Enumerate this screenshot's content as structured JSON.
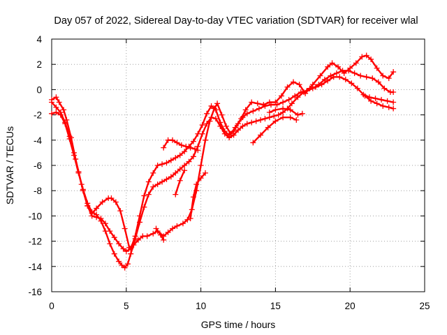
{
  "chart_data": {
    "type": "scatter",
    "title": "Day 057 of 2022, Sidereal Day-to-day VTEC variation (SDTVAR) for receiver wlal",
    "xlabel": "GPS time / hours",
    "ylabel": "SDTVAR / TECUs",
    "xlim": [
      0,
      25
    ],
    "ylim": [
      -16,
      4
    ],
    "x_ticks": [
      "0",
      "5",
      "10",
      "15",
      "20",
      "25"
    ],
    "y_ticks": [
      "4",
      "2",
      "0",
      "-2",
      "-4",
      "-6",
      "-8",
      "-10",
      "-12",
      "-14",
      "-16"
    ],
    "grid": true,
    "marker": "plus",
    "color": "#ff0000",
    "series": [
      {
        "x": [
          0.0,
          0.3,
          0.5,
          0.8,
          1.0,
          1.3,
          1.6,
          2.0,
          2.4,
          2.7,
          3.0,
          3.4,
          3.8,
          4.0,
          4.3,
          4.6,
          4.9,
          5.2,
          5.5,
          5.8,
          6.1,
          6.4,
          6.8,
          7.1,
          7.5,
          7.8,
          8.1,
          8.4,
          8.8,
          9.1,
          9.4,
          9.7,
          10.0,
          10.3,
          10.6,
          10.9,
          11.1,
          11.4,
          11.7,
          12.0,
          12.3,
          12.7,
          13.0,
          13.4,
          13.8,
          14.2,
          14.6,
          15.0,
          15.4,
          15.8,
          16.2,
          16.6,
          17.0,
          17.5,
          18.0,
          18.5,
          18.8,
          19.2,
          19.6,
          20.0,
          20.4,
          20.8,
          21.1,
          21.4,
          21.8,
          22.2,
          22.6,
          22.9
        ],
        "y": [
          -0.8,
          -0.6,
          -1.0,
          -1.6,
          -2.4,
          -3.8,
          -5.5,
          -7.5,
          -9.2,
          -9.8,
          -9.4,
          -8.9,
          -8.6,
          -8.6,
          -8.9,
          -9.6,
          -11.0,
          -12.5,
          -12.3,
          -11.9,
          -11.6,
          -11.6,
          -11.4,
          -11.2,
          -11.6,
          -11.3,
          -11.0,
          -10.8,
          -10.6,
          -10.3,
          -9.5,
          -8.0,
          -6.0,
          -4.0,
          -2.5,
          -1.5,
          -1.1,
          -2.0,
          -2.9,
          -3.5,
          -3.0,
          -2.3,
          -1.6,
          -1.0,
          -1.1,
          -1.2,
          -1.0,
          -1.0,
          -0.5,
          0.2,
          0.6,
          0.4,
          -0.3,
          0.4,
          1.1,
          1.8,
          2.1,
          1.8,
          1.3,
          1.7,
          2.1,
          2.6,
          2.7,
          2.4,
          1.7,
          1.1,
          0.9,
          1.4
        ]
      },
      {
        "x": [
          0.0,
          0.3,
          0.6,
          0.9,
          1.2,
          1.5,
          1.8,
          2.1,
          2.4,
          2.7,
          3.0,
          3.3,
          3.6,
          3.9,
          4.2,
          4.5,
          4.8,
          5.0,
          5.3,
          5.6,
          5.9,
          6.2,
          6.5,
          6.8,
          7.1,
          7.4,
          7.7,
          8.0,
          8.3,
          8.6,
          8.9,
          9.2,
          9.5,
          9.8,
          10.1,
          10.4,
          10.7,
          11.0,
          11.3,
          11.6,
          11.9,
          12.2,
          12.5,
          12.8,
          13.1,
          13.5,
          13.9,
          14.3,
          14.7,
          15.1,
          15.5,
          15.9,
          16.3,
          16.7,
          17.1,
          17.5,
          17.9,
          18.3,
          18.7,
          19.1,
          19.5,
          19.9,
          20.3,
          20.7,
          21.1,
          21.5,
          21.9,
          22.3,
          22.7,
          22.9
        ],
        "y": [
          -1.0,
          -1.4,
          -1.8,
          -2.6,
          -3.7,
          -5.0,
          -6.5,
          -8.0,
          -9.2,
          -10.0,
          -10.1,
          -10.2,
          -10.6,
          -11.2,
          -11.7,
          -12.2,
          -12.6,
          -12.8,
          -12.6,
          -11.6,
          -10.0,
          -8.4,
          -7.3,
          -6.6,
          -6.0,
          -5.9,
          -5.8,
          -5.6,
          -5.4,
          -5.2,
          -4.9,
          -4.5,
          -4.1,
          -3.5,
          -2.8,
          -1.9,
          -1.3,
          -1.6,
          -2.6,
          -3.3,
          -3.6,
          -3.3,
          -2.7,
          -2.2,
          -1.9,
          -1.7,
          -1.5,
          -1.3,
          -1.2,
          -1.2,
          -1.0,
          -0.8,
          -0.5,
          -0.2,
          -0.1,
          0.1,
          0.4,
          0.8,
          1.1,
          1.3,
          1.5,
          1.5,
          1.3,
          1.1,
          1.0,
          0.9,
          0.6,
          0.1,
          -0.2,
          -0.2
        ]
      },
      {
        "x": [
          0.0,
          0.3,
          0.6,
          0.9,
          1.2,
          1.5,
          1.8,
          2.1,
          2.4,
          2.7,
          3.0,
          3.3,
          3.6,
          3.9,
          4.2,
          4.5,
          4.7,
          4.9,
          5.1,
          5.3,
          5.6,
          5.9,
          6.2,
          6.5,
          6.8,
          7.1,
          7.4,
          7.7,
          8.0,
          8.3,
          8.6,
          8.9,
          9.2,
          9.5,
          9.8,
          10.1,
          10.4,
          10.7,
          11.0,
          11.3,
          11.6,
          11.9,
          12.2,
          12.5,
          12.8,
          13.1,
          13.4,
          13.7,
          14.0,
          14.3,
          14.6,
          14.9,
          15.2,
          15.5,
          15.8,
          16.1,
          16.5,
          16.9,
          17.3,
          17.7,
          18.1,
          18.5,
          18.9,
          19.3,
          19.7,
          20.1,
          20.5,
          20.9,
          21.3,
          21.7,
          22.1,
          22.5,
          22.9
        ],
        "y": [
          -1.9,
          -1.8,
          -2.0,
          -2.7,
          -3.9,
          -5.2,
          -6.6,
          -7.9,
          -9.0,
          -9.7,
          -9.9,
          -10.4,
          -11.2,
          -12.2,
          -13.0,
          -13.6,
          -13.9,
          -14.1,
          -13.8,
          -13.0,
          -11.8,
          -10.5,
          -9.3,
          -8.3,
          -7.7,
          -7.5,
          -7.3,
          -7.1,
          -6.9,
          -6.6,
          -6.3,
          -6.0,
          -5.7,
          -5.3,
          -4.5,
          -3.5,
          -2.7,
          -2.2,
          -2.3,
          -2.9,
          -3.5,
          -3.8,
          -3.6,
          -3.2,
          -2.9,
          -2.7,
          -2.6,
          -2.5,
          -2.4,
          -2.3,
          -2.2,
          -2.1,
          -2.0,
          -1.8,
          -1.5,
          -1.1,
          -0.6,
          -0.2,
          0.1,
          0.2,
          0.4,
          0.7,
          1.0,
          1.0,
          0.8,
          0.5,
          0.1,
          -0.4,
          -0.6,
          -0.7,
          -0.8,
          -0.9,
          -1.0
        ]
      }
    ],
    "fragments": [
      {
        "x": [
          7.5,
          7.8,
          8.1,
          8.4,
          8.7,
          9.0,
          9.3,
          9.6,
          9.8
        ],
        "y": [
          -4.6,
          -4.0,
          -4.0,
          -4.2,
          -4.4,
          -4.5,
          -4.6,
          -4.7,
          -4.8
        ]
      },
      {
        "x": [
          8.3,
          8.6,
          8.9
        ],
        "y": [
          -8.3,
          -7.2,
          -6.4
        ]
      },
      {
        "x": [
          9.3,
          9.5,
          9.7,
          10.0,
          10.3
        ],
        "y": [
          -10.2,
          -8.5,
          -7.5,
          -7.0,
          -6.6
        ]
      },
      {
        "x": [
          7.0,
          7.3,
          7.5
        ],
        "y": [
          -11.0,
          -11.5,
          -11.9
        ]
      },
      {
        "x": [
          13.5,
          14.0,
          14.5,
          15.0,
          15.5,
          16.0,
          16.4
        ],
        "y": [
          -4.2,
          -3.6,
          -3.0,
          -2.5,
          -2.2,
          -2.2,
          -2.4
        ]
      },
      {
        "x": [
          14.6,
          15.0,
          15.5,
          16.0,
          16.5,
          16.8
        ],
        "y": [
          -1.8,
          -1.6,
          -1.5,
          -1.6,
          -2.0,
          -1.9
        ]
      },
      {
        "x": [
          21.0,
          21.4,
          21.8,
          22.2,
          22.6,
          22.9
        ],
        "y": [
          -0.5,
          -0.9,
          -1.1,
          -1.3,
          -1.4,
          -1.5
        ]
      }
    ]
  }
}
